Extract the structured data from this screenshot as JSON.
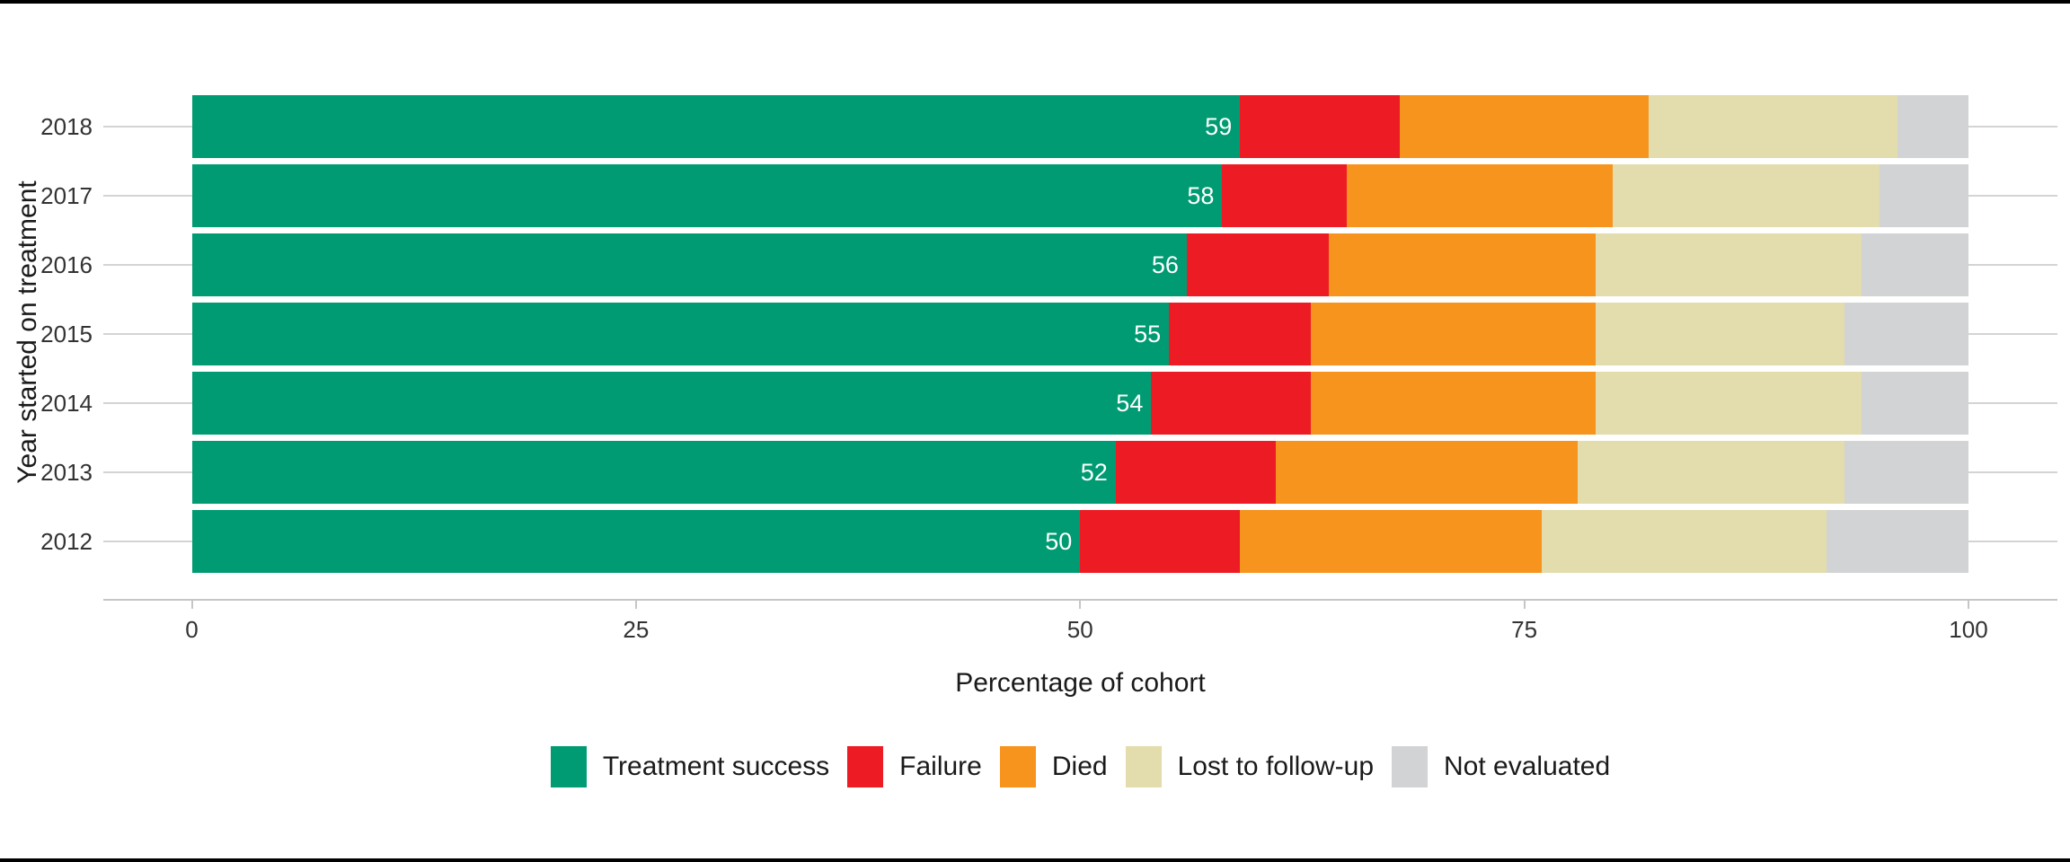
{
  "chart_data": {
    "type": "bar",
    "orientation": "horizontal",
    "stacked": true,
    "title": "",
    "xlabel": "Percentage of cohort",
    "ylabel": "Year started on treatment",
    "xlim": [
      0,
      100
    ],
    "x_ticks": [
      0,
      25,
      50,
      75,
      100
    ],
    "grid": "horizontal gridlines only",
    "legend_position": "bottom",
    "bar_label_series": "Treatment success",
    "categories": [
      "2018",
      "2017",
      "2016",
      "2015",
      "2014",
      "2013",
      "2012"
    ],
    "series": [
      {
        "name": "Treatment success",
        "color": "#009b72",
        "labels_shown": true,
        "values": [
          59,
          58,
          56,
          55,
          54,
          52,
          50
        ]
      },
      {
        "name": "Failure",
        "color": "#ed1c24",
        "labels_shown": false,
        "values": [
          9,
          7,
          8,
          8,
          9,
          9,
          9
        ]
      },
      {
        "name": "Died",
        "color": "#f7941e",
        "labels_shown": false,
        "values": [
          14,
          15,
          15,
          16,
          16,
          17,
          17
        ]
      },
      {
        "name": "Lost to follow-up",
        "color": "#e3dcac",
        "labels_shown": false,
        "values": [
          14,
          15,
          15,
          14,
          15,
          15,
          16
        ]
      },
      {
        "name": "Not evaluated",
        "color": "#d1d3d4",
        "labels_shown": false,
        "values": [
          4,
          5,
          6,
          7,
          6,
          7,
          8
        ]
      }
    ]
  },
  "colors": {
    "gridline": "#d4d4d4",
    "axis_line": "#c6c6c6",
    "tick_text": "#333333",
    "title_text": "#1a1a1a",
    "bar_label_text": "#ffffff",
    "background": "#ffffff"
  }
}
